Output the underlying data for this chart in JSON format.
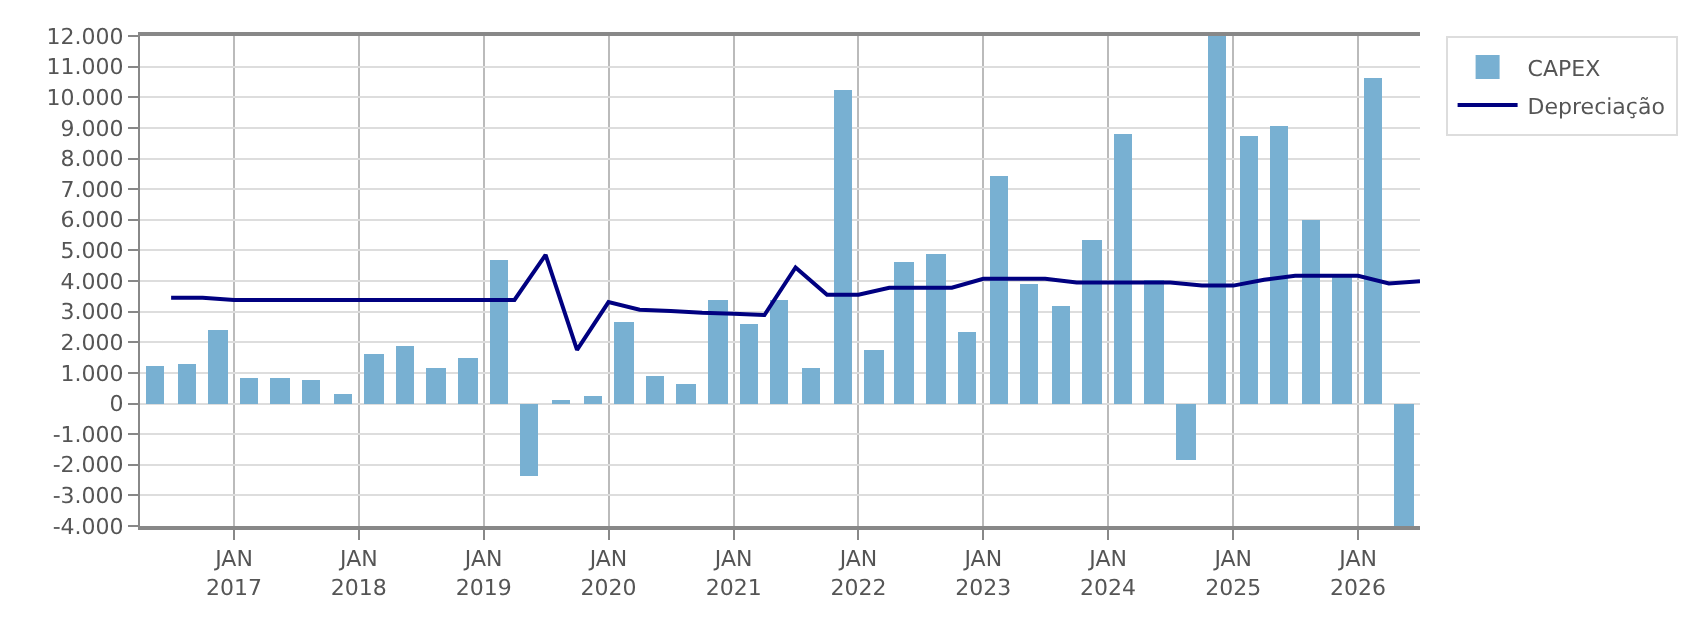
{
  "chart_data": {
    "type": "bar",
    "series": [
      {
        "name": "CAPEX",
        "color": "#78b0d2",
        "x": [
          "2016-05-15",
          "2016-08-15",
          "2016-11-15",
          "2017-02-15",
          "2017-05-15",
          "2017-08-15",
          "2017-11-15",
          "2018-02-15",
          "2018-05-15",
          "2018-08-15",
          "2018-11-15",
          "2019-02-15",
          "2019-05-15",
          "2019-08-15",
          "2019-11-15",
          "2020-02-15",
          "2020-05-15",
          "2020-08-15",
          "2020-11-15",
          "2021-02-15",
          "2021-05-15",
          "2021-08-15",
          "2021-11-15",
          "2022-02-15",
          "2022-05-15",
          "2022-08-15",
          "2022-11-15",
          "2023-02-15",
          "2023-05-15",
          "2023-08-15",
          "2023-11-15",
          "2024-02-15",
          "2024-05-15",
          "2024-08-15",
          "2024-11-15",
          "2025-02-15",
          "2025-05-15",
          "2025-08-15",
          "2025-11-15",
          "2026-02-15",
          "2026-05-15"
        ],
        "values": [
          1250,
          1320,
          2370,
          820,
          820,
          760,
          330,
          1630,
          1880,
          1130,
          1500,
          4660,
          -2380,
          140,
          250,
          2660,
          870,
          620,
          3350,
          2600,
          3410,
          1180,
          10230,
          1740,
          4590,
          4900,
          2360,
          7440,
          3900,
          3160,
          5330,
          8780,
          4020,
          -1860,
          12000,
          8720,
          9030,
          6000,
          4140,
          10640,
          -4000
        ]
      },
      {
        "name": "Depreciação",
        "type": "line",
        "color": "#000080",
        "x": [
          "2016-07-01",
          "2016-10-01",
          "2017-01-01",
          "2017-04-01",
          "2017-07-01",
          "2017-10-01",
          "2018-01-01",
          "2018-04-01",
          "2018-07-01",
          "2018-10-01",
          "2019-01-01",
          "2019-04-01",
          "2019-07-01",
          "2019-10-01",
          "2020-01-01",
          "2020-04-01",
          "2020-07-01",
          "2020-10-01",
          "2021-01-01",
          "2021-04-01",
          "2021-07-01",
          "2021-10-01",
          "2022-01-01",
          "2022-04-01",
          "2022-07-01",
          "2022-10-01",
          "2023-01-01",
          "2023-04-01",
          "2023-07-01",
          "2023-10-01",
          "2024-01-01",
          "2024-04-01",
          "2024-07-01",
          "2024-10-01",
          "2025-01-01",
          "2025-04-01",
          "2025-07-01",
          "2025-10-01",
          "2026-01-01",
          "2026-04-01",
          "2026-07-01"
        ],
        "values": [
          3450,
          3450,
          3380,
          3380,
          3380,
          3380,
          3380,
          3380,
          3380,
          3380,
          3380,
          3380,
          4850,
          1750,
          3310,
          3060,
          3020,
          2960,
          2930,
          2890,
          4440,
          3550,
          3550,
          3780,
          3780,
          3780,
          4070,
          4070,
          4070,
          3950,
          3950,
          3950,
          3950,
          3850,
          3850,
          4040,
          4170,
          4170,
          4170,
          3920,
          3990
        ]
      }
    ],
    "xlim": [
      "2016-04-01",
      "2026-07-01"
    ],
    "xticks": [
      {
        "value": "2017-01-01",
        "label": "JAN\n2017"
      },
      {
        "value": "2018-01-01",
        "label": "JAN\n2018"
      },
      {
        "value": "2019-01-01",
        "label": "JAN\n2019"
      },
      {
        "value": "2020-01-01",
        "label": "JAN\n2020"
      },
      {
        "value": "2021-01-01",
        "label": "JAN\n2021"
      },
      {
        "value": "2022-01-01",
        "label": "JAN\n2022"
      },
      {
        "value": "2023-01-01",
        "label": "JAN\n2023"
      },
      {
        "value": "2024-01-01",
        "label": "JAN\n2024"
      },
      {
        "value": "2025-01-01",
        "label": "JAN\n2025"
      },
      {
        "value": "2026-01-01",
        "label": "JAN\n2026"
      }
    ],
    "ylim": [
      -4000,
      12000
    ],
    "yticks": [
      {
        "value": -4000,
        "label": "-4.000"
      },
      {
        "value": -3000,
        "label": "-3.000"
      },
      {
        "value": -2000,
        "label": "-2.000"
      },
      {
        "value": -1000,
        "label": "-1.000"
      },
      0,
      {
        "value": 1000,
        "label": "1.000"
      },
      {
        "value": 2000,
        "label": "2.000"
      },
      {
        "value": 3000,
        "label": "3.000"
      },
      {
        "value": 4000,
        "label": "4.000"
      },
      {
        "value": 5000,
        "label": "5.000"
      },
      {
        "value": 6000,
        "label": "6.000"
      },
      {
        "value": 7000,
        "label": "7.000"
      },
      {
        "value": 8000,
        "label": "8.000"
      },
      {
        "value": 9000,
        "label": "9.000"
      },
      {
        "value": 10000,
        "label": "10.000"
      },
      {
        "value": 11000,
        "label": "11.000"
      },
      {
        "value": 12000,
        "label": "12.000"
      }
    ],
    "grid": true,
    "legend": "top right",
    "line_style": "solid",
    "marker": "none"
  }
}
